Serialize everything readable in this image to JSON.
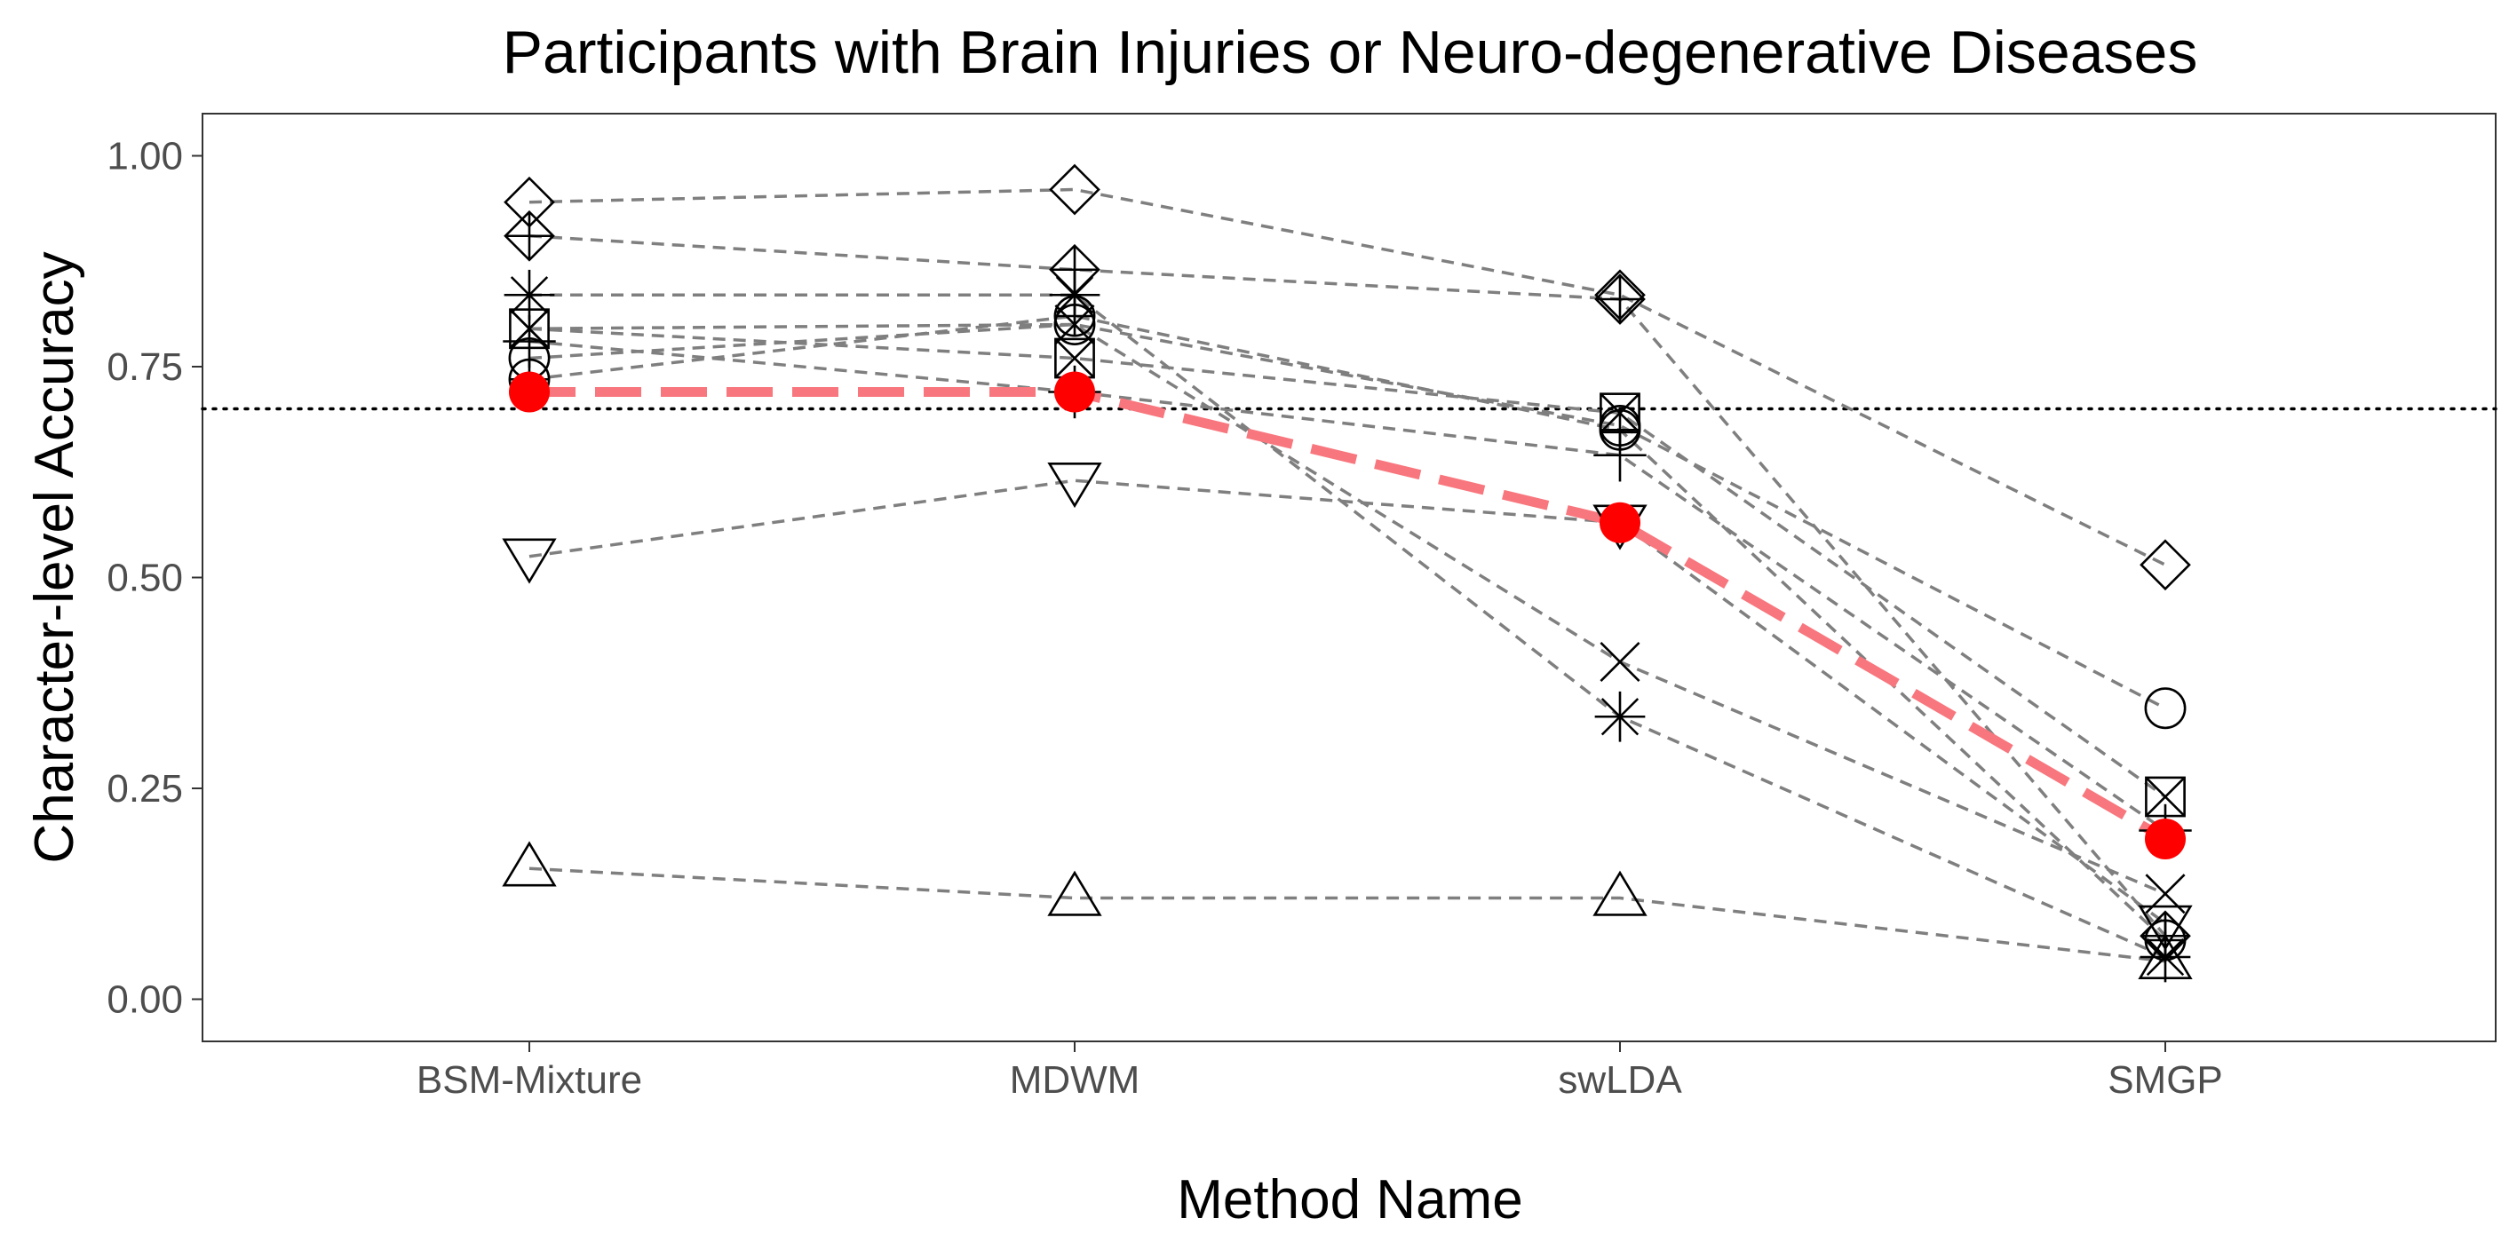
{
  "chart_data": {
    "type": "line",
    "title": "Participants with Brain Injuries or Neuro-degenerative Diseases",
    "xlabel": "Method Name",
    "ylabel": "Character-level Accuracy",
    "categories": [
      "BSM-Mixture",
      "MDWM",
      "swLDA",
      "SMGP"
    ],
    "ylim": [
      -0.05,
      1.05
    ],
    "yticks": [
      0.0,
      0.25,
      0.5,
      0.75,
      1.0
    ],
    "ytick_labels": [
      "0.00",
      "0.25",
      "0.50",
      "0.75",
      "1.00"
    ],
    "reference_line": 0.7,
    "grid": false,
    "legend": "none",
    "participants": [
      {
        "marker": "diamond",
        "values": [
          0.945,
          0.96,
          0.835,
          0.515
        ]
      },
      {
        "marker": "diamond-plus",
        "values": [
          0.905,
          0.865,
          0.83,
          0.075
        ]
      },
      {
        "marker": "asterisk",
        "values": [
          0.835,
          0.835,
          0.335,
          0.05
        ]
      },
      {
        "marker": "square-x",
        "values": [
          0.795,
          0.76,
          0.695,
          0.24
        ]
      },
      {
        "marker": "x",
        "values": [
          0.795,
          0.8,
          0.4,
          0.125
        ]
      },
      {
        "marker": "plus",
        "values": [
          0.78,
          0.72,
          0.645,
          0.2
        ]
      },
      {
        "marker": "circle",
        "values": [
          0.76,
          0.8,
          0.68,
          0.345
        ]
      },
      {
        "marker": "circle-plus",
        "values": [
          0.735,
          0.81,
          0.675,
          0.07
        ]
      },
      {
        "marker": "triangle-down",
        "values": [
          0.525,
          0.615,
          0.565,
          0.09
        ]
      },
      {
        "marker": "triangle-up",
        "values": [
          0.155,
          0.12,
          0.12,
          0.045
        ]
      }
    ],
    "mean": {
      "values": [
        0.72,
        0.72,
        0.565,
        0.19
      ],
      "color": "#ff0000",
      "line_color": "#f8767d"
    },
    "colors": {
      "points": "#000000",
      "connector": "#7f7f7f",
      "reference": "#000000",
      "axis_text": "#4d4d4d"
    }
  }
}
